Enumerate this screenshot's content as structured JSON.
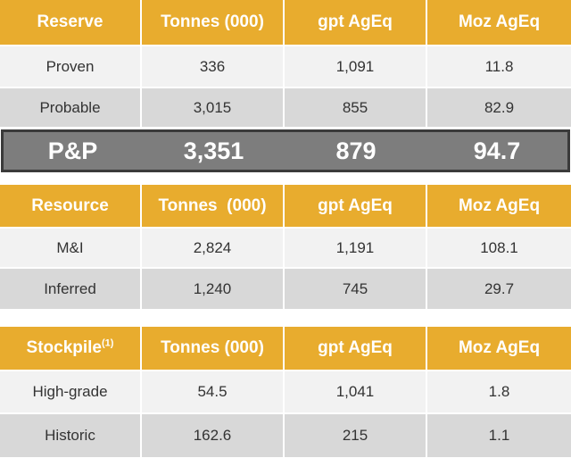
{
  "reserve": {
    "headers": [
      "Reserve",
      "Tonnes (000)",
      "gpt AgEq",
      "Moz AgEq"
    ],
    "rows": [
      [
        "Proven",
        "336",
        "1,091",
        "11.8"
      ],
      [
        "Probable",
        "3,015",
        "855",
        "82.9"
      ]
    ],
    "total": [
      "P&P",
      "3,351",
      "879",
      "94.7"
    ]
  },
  "resource": {
    "headers": [
      "Resource",
      "Tonnes  (000)",
      "gpt AgEq",
      "Moz AgEq"
    ],
    "rows": [
      [
        "M&I",
        "2,824",
        "1,191",
        "108.1"
      ],
      [
        "Inferred",
        "1,240",
        "745",
        "29.7"
      ]
    ]
  },
  "stockpile": {
    "headers": [
      "Stockpile",
      "Tonnes (000)",
      "gpt AgEq",
      "Moz AgEq"
    ],
    "footnote_marker": "(1)",
    "rows": [
      [
        "High-grade",
        "54.5",
        "1,041",
        "1.8"
      ],
      [
        "Historic",
        "162.6",
        "215",
        "1.1"
      ]
    ]
  }
}
